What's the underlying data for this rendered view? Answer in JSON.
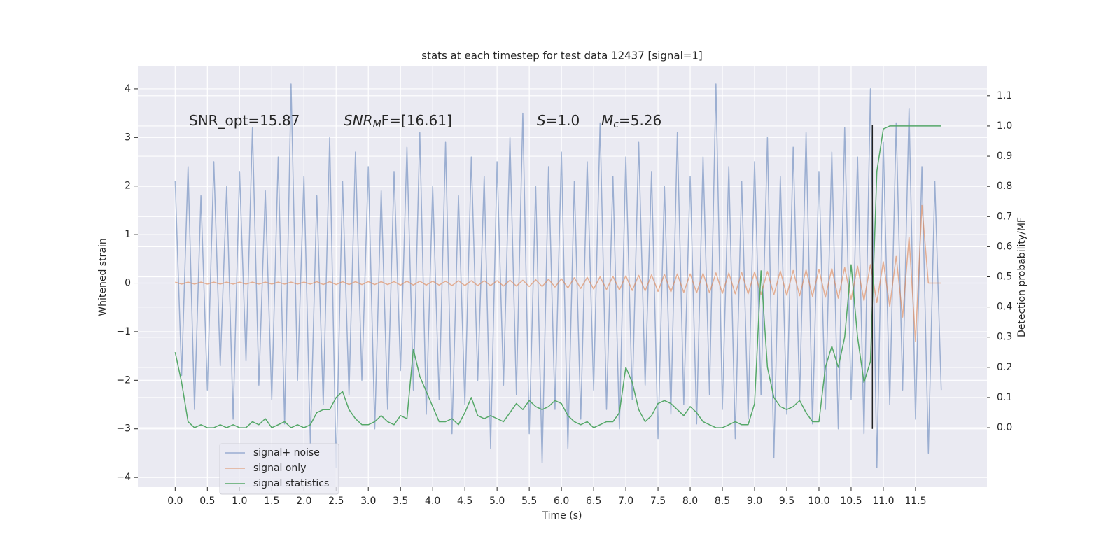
{
  "chart_data": {
    "type": "line",
    "title": "stats at each timestep for test data 12437 [signal=1]",
    "x_label": "Time (s)",
    "y_label": "Whitened strain",
    "y2_label": "Detection probability/MF",
    "annotations": [
      {
        "text": "SNR_opt=15.87"
      },
      {
        "italic": "SNR",
        "sub": "M",
        "rest": "F=[16.61]"
      },
      {
        "italic": "S",
        "rest": "=1.0"
      },
      {
        "italic": "M",
        "sub": "c",
        "rest": "=5.26"
      }
    ],
    "xlim": [
      -0.58,
      12.61
    ],
    "ylim": [
      -4.2,
      4.46
    ],
    "y2lim": [
      -0.197,
      1.197
    ],
    "xticks": [
      {
        "value": 0,
        "label": "0.0"
      },
      0.5,
      {
        "value": 1,
        "label": "1.0"
      },
      1.5,
      {
        "value": 2,
        "label": "2.0"
      },
      2.5,
      {
        "value": 3,
        "label": "3.0"
      },
      3.5,
      {
        "value": 4,
        "label": "4.0"
      },
      4.5,
      {
        "value": 5,
        "label": "5.0"
      },
      5.5,
      {
        "value": 6,
        "label": "6.0"
      },
      6.5,
      {
        "value": 7,
        "label": "7.0"
      },
      7.5,
      {
        "value": 8,
        "label": "8.0"
      },
      8.5,
      {
        "value": 9,
        "label": "9.0"
      },
      9.5,
      {
        "value": 10,
        "label": "10.0"
      },
      10.5,
      {
        "value": 11,
        "label": "11.0"
      },
      11.5
    ],
    "yticks": [
      {
        "value": -4,
        "label": "−4"
      },
      {
        "value": -3,
        "label": "−3"
      },
      {
        "value": -2,
        "label": "−2"
      },
      {
        "value": -1,
        "label": "−1"
      },
      0,
      1,
      2,
      3,
      4
    ],
    "y2ticks": [
      {
        "value": 0,
        "label": "0.0"
      },
      0.1,
      0.2,
      0.3,
      0.4,
      0.5,
      0.6,
      0.7,
      0.8,
      0.9,
      {
        "value": 1,
        "label": "1.0"
      },
      1.1
    ],
    "grid": true,
    "legend": "lower left",
    "background": "#eaeaf2",
    "x": [
      0.0,
      0.1,
      0.2,
      0.3,
      0.4,
      0.5,
      0.6,
      0.7,
      0.8,
      0.9,
      1.0,
      1.1,
      1.2,
      1.3,
      1.4,
      1.5,
      1.6,
      1.7,
      1.8,
      1.9,
      2.0,
      2.1,
      2.2,
      2.3,
      2.4,
      2.5,
      2.6,
      2.7,
      2.8,
      2.9,
      3.0,
      3.1,
      3.2,
      3.3,
      3.4,
      3.5,
      3.6,
      3.7,
      3.8,
      3.9,
      4.0,
      4.1,
      4.2,
      4.3,
      4.4,
      4.5,
      4.6,
      4.7,
      4.8,
      4.9,
      5.0,
      5.1,
      5.2,
      5.3,
      5.4,
      5.5,
      5.6,
      5.7,
      5.8,
      5.9,
      6.0,
      6.1,
      6.2,
      6.3,
      6.4,
      6.5,
      6.6,
      6.7,
      6.8,
      6.9,
      7.0,
      7.1,
      7.2,
      7.3,
      7.4,
      7.5,
      7.6,
      7.7,
      7.8,
      7.9,
      8.0,
      8.1,
      8.2,
      8.3,
      8.4,
      8.5,
      8.6,
      8.7,
      8.8,
      8.9,
      9.0,
      9.1,
      9.2,
      9.3,
      9.4,
      9.5,
      9.6,
      9.7,
      9.8,
      9.9,
      10.0,
      10.1,
      10.2,
      10.3,
      10.4,
      10.5,
      10.6,
      10.7,
      10.8,
      10.9,
      11.0,
      11.1,
      11.2,
      11.3,
      11.4,
      11.5,
      11.6,
      11.7,
      11.8,
      11.9
    ],
    "series": [
      {
        "name": "signal+ noise",
        "color": "#4c72b0",
        "opacity": 0.5,
        "values": [
          2.1,
          -1.9,
          2.4,
          -2.6,
          1.8,
          -2.2,
          2.5,
          -1.7,
          2.0,
          -2.8,
          2.3,
          -1.6,
          3.2,
          -2.1,
          1.9,
          -2.4,
          2.6,
          -2.9,
          4.1,
          -2.0,
          2.2,
          -3.3,
          1.8,
          -2.5,
          3.0,
          -3.8,
          2.1,
          -2.3,
          2.7,
          -2.0,
          2.4,
          -3.0,
          1.9,
          -2.6,
          2.3,
          -1.8,
          2.8,
          -2.2,
          3.1,
          -2.7,
          2.0,
          -2.4,
          2.9,
          -3.1,
          1.8,
          -2.5,
          2.6,
          -2.0,
          2.2,
          -3.4,
          2.5,
          -2.1,
          3.0,
          -2.3,
          3.5,
          -3.1,
          2.0,
          -3.7,
          2.4,
          -2.6,
          2.7,
          -3.4,
          2.1,
          -2.8,
          2.5,
          -2.2,
          3.3,
          -2.6,
          2.2,
          -3.0,
          2.6,
          -2.4,
          2.9,
          -2.1,
          2.3,
          -3.2,
          2.0,
          -2.7,
          3.1,
          -2.5,
          2.2,
          -2.9,
          2.6,
          -2.3,
          4.1,
          -2.6,
          2.4,
          -3.2,
          2.1,
          -2.8,
          2.5,
          -2.3,
          3.0,
          -3.6,
          2.2,
          -2.7,
          2.8,
          -2.4,
          3.1,
          -2.9,
          2.3,
          -2.6,
          2.7,
          -3.0,
          3.2,
          -2.4,
          2.6,
          -3.1,
          4.0,
          -3.8,
          2.9,
          -2.5,
          3.3,
          -2.2,
          3.6,
          -2.8,
          2.4,
          -3.5,
          2.1,
          -2.2
        ]
      },
      {
        "name": "signal only",
        "color": "#dd8452",
        "opacity": 0.6,
        "values": [
          0.02,
          -0.02,
          0.02,
          -0.02,
          0.02,
          -0.02,
          0.02,
          -0.02,
          0.02,
          -0.02,
          0.02,
          -0.02,
          0.02,
          -0.02,
          0.02,
          -0.02,
          0.02,
          -0.02,
          0.02,
          -0.02,
          0.02,
          -0.02,
          0.03,
          -0.03,
          0.03,
          -0.03,
          0.03,
          -0.03,
          0.03,
          -0.03,
          0.03,
          -0.03,
          0.03,
          -0.03,
          0.03,
          -0.04,
          0.04,
          -0.04,
          0.04,
          -0.04,
          0.04,
          -0.04,
          0.04,
          -0.05,
          0.05,
          -0.05,
          0.05,
          -0.05,
          0.05,
          -0.05,
          0.05,
          -0.06,
          0.06,
          -0.06,
          0.06,
          -0.07,
          0.07,
          -0.07,
          0.08,
          -0.08,
          0.09,
          -0.1,
          0.11,
          -0.11,
          0.12,
          -0.12,
          0.13,
          -0.13,
          0.14,
          -0.14,
          0.15,
          -0.15,
          0.16,
          -0.16,
          0.17,
          -0.17,
          0.18,
          -0.18,
          0.19,
          -0.19,
          0.19,
          -0.2,
          0.2,
          -0.2,
          0.21,
          -0.21,
          0.21,
          -0.22,
          0.22,
          -0.22,
          0.23,
          -0.23,
          0.24,
          -0.24,
          0.25,
          -0.25,
          0.26,
          -0.26,
          0.27,
          -0.27,
          0.28,
          -0.29,
          0.3,
          -0.31,
          0.32,
          -0.33,
          0.35,
          -0.36,
          0.38,
          -0.4,
          0.44,
          -0.48,
          0.55,
          -0.7,
          0.95,
          -1.2,
          1.6,
          0.0,
          0.0,
          0.0
        ]
      },
      {
        "name": "signal statistics",
        "color": "#55a868",
        "opacity": 1,
        "axis": "y2",
        "values": [
          0.25,
          0.15,
          0.02,
          0.0,
          0.01,
          0.0,
          0.0,
          0.01,
          0.0,
          0.01,
          0.0,
          0.0,
          0.02,
          0.01,
          0.03,
          0.0,
          0.01,
          0.02,
          0.0,
          0.01,
          0.0,
          0.01,
          0.05,
          0.06,
          0.06,
          0.1,
          0.12,
          0.06,
          0.03,
          0.01,
          0.01,
          0.02,
          0.04,
          0.02,
          0.01,
          0.04,
          0.03,
          0.26,
          0.17,
          0.12,
          0.07,
          0.02,
          0.02,
          0.03,
          0.01,
          0.05,
          0.1,
          0.04,
          0.03,
          0.04,
          0.03,
          0.02,
          0.05,
          0.08,
          0.06,
          0.09,
          0.07,
          0.06,
          0.07,
          0.09,
          0.08,
          0.04,
          0.02,
          0.01,
          0.02,
          0.0,
          0.01,
          0.02,
          0.02,
          0.05,
          0.2,
          0.15,
          0.06,
          0.02,
          0.04,
          0.08,
          0.09,
          0.08,
          0.06,
          0.04,
          0.07,
          0.05,
          0.02,
          0.01,
          0.0,
          0.0,
          0.01,
          0.02,
          0.01,
          0.01,
          0.08,
          0.52,
          0.2,
          0.1,
          0.07,
          0.06,
          0.07,
          0.09,
          0.05,
          0.02,
          0.02,
          0.2,
          0.27,
          0.2,
          0.3,
          0.54,
          0.3,
          0.15,
          0.22,
          0.85,
          0.99,
          1.0,
          1.0,
          1.0,
          1.0,
          1.0,
          1.0,
          1.0,
          1.0,
          1.0
        ]
      }
    ],
    "vline": {
      "x": 10.83,
      "ymin": -3.0,
      "ymax": 3.25,
      "color": "#222222"
    }
  }
}
